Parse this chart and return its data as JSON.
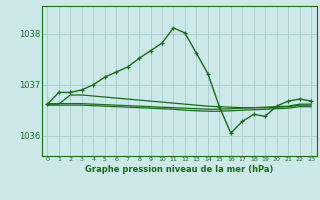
{
  "title": "Graphe pression niveau de la mer (hPa)",
  "bg_color": "#cce8e8",
  "grid_color": "#aacccc",
  "line_color": "#1a6b1a",
  "ylim": [
    1035.6,
    1038.55
  ],
  "yticks": [
    1036,
    1037,
    1038
  ],
  "series1": [
    1036.62,
    1036.85,
    1036.85,
    1036.9,
    1037.0,
    1037.15,
    1037.25,
    1037.35,
    1037.52,
    1037.67,
    1037.82,
    1038.12,
    1038.02,
    1037.62,
    1037.22,
    1036.57,
    1036.05,
    1036.28,
    1036.42,
    1036.38,
    1036.58,
    1036.68,
    1036.72,
    1036.68
  ],
  "series2": [
    1036.63,
    1036.63,
    1036.63,
    1036.63,
    1036.62,
    1036.61,
    1036.6,
    1036.59,
    1036.58,
    1036.57,
    1036.56,
    1036.55,
    1036.54,
    1036.53,
    1036.52,
    1036.52,
    1036.53,
    1036.54,
    1036.55,
    1036.56,
    1036.57,
    1036.58,
    1036.62,
    1036.62
  ],
  "series3": [
    1036.6,
    1036.6,
    1036.6,
    1036.6,
    1036.59,
    1036.58,
    1036.57,
    1036.56,
    1036.55,
    1036.54,
    1036.53,
    1036.52,
    1036.5,
    1036.49,
    1036.48,
    1036.48,
    1036.49,
    1036.5,
    1036.51,
    1036.52,
    1036.53,
    1036.54,
    1036.57,
    1036.57
  ],
  "series4": [
    1036.62,
    1036.62,
    1036.8,
    1036.8,
    1036.78,
    1036.76,
    1036.74,
    1036.72,
    1036.7,
    1036.68,
    1036.66,
    1036.64,
    1036.62,
    1036.6,
    1036.58,
    1036.57,
    1036.56,
    1036.55,
    1036.55,
    1036.55,
    1036.56,
    1036.57,
    1036.6,
    1036.6
  ]
}
